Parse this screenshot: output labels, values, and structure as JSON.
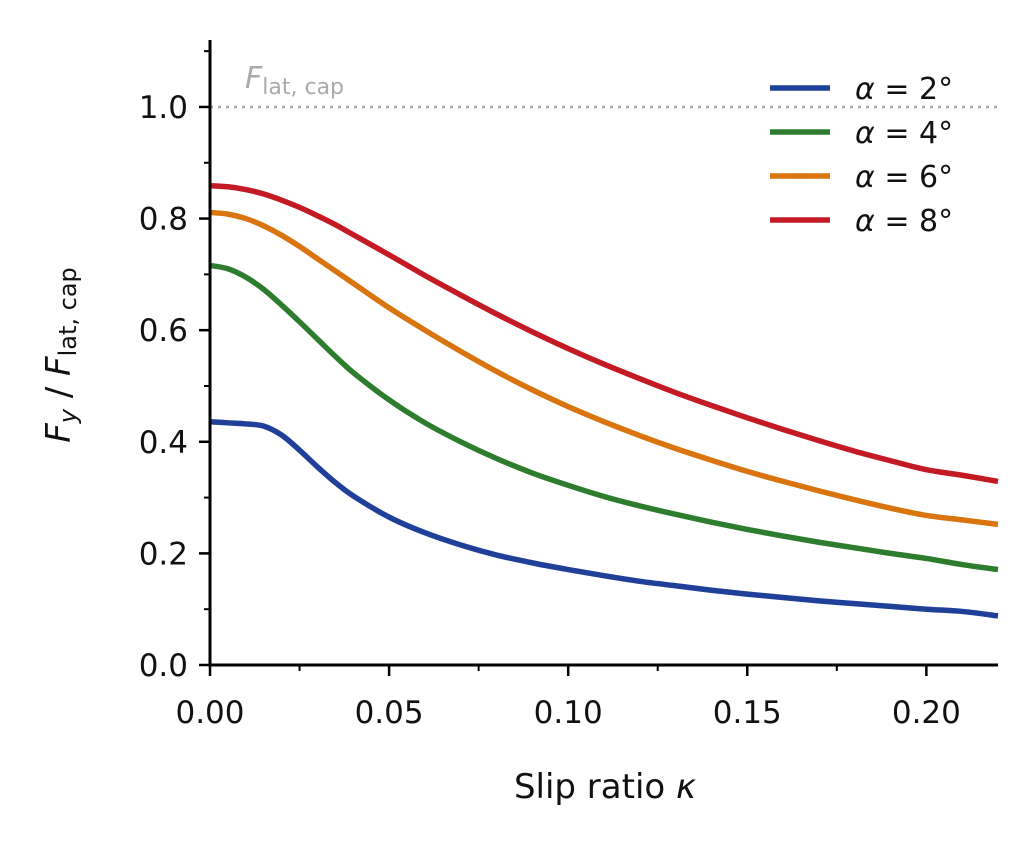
{
  "chart_data": {
    "type": "line",
    "xlabel": {
      "text": "Slip ratio",
      "symbol": "κ"
    },
    "ylabel": {
      "num": "F",
      "num_sub": "y",
      "den": "F",
      "den_sub": "lat, cap"
    },
    "xlim": [
      0,
      0.22
    ],
    "ylim": [
      0,
      1.12
    ],
    "x_ticks_major": [
      0,
      0.05,
      0.1,
      0.15,
      0.2
    ],
    "x_tick_labels": [
      "0.00",
      "0.05",
      "0.10",
      "0.15",
      "0.20"
    ],
    "x_ticks_minor": [
      0.025,
      0.075,
      0.125,
      0.175
    ],
    "y_ticks_major": [
      0,
      0.2,
      0.4,
      0.6,
      0.8,
      1.0
    ],
    "y_tick_labels": [
      "0.0",
      "0.2",
      "0.4",
      "0.6",
      "0.8",
      "1.0"
    ],
    "y_ticks_minor": [
      0.1,
      0.3,
      0.5,
      0.7,
      0.9,
      1.1
    ],
    "grid": false,
    "legend_position": "top-right",
    "reference_line": {
      "y": 1.0,
      "style": "dotted",
      "color": "#aaaaaa",
      "label_main": "F",
      "label_sub": "lat, cap"
    },
    "series": [
      {
        "name": "α = 2°",
        "label_symbol": "α",
        "label_value": "= 2°",
        "color": "#1f3f99",
        "x": [
          0,
          0.005,
          0.01,
          0.015,
          0.02,
          0.025,
          0.03,
          0.035,
          0.04,
          0.05,
          0.06,
          0.07,
          0.08,
          0.09,
          0.1,
          0.11,
          0.12,
          0.13,
          0.14,
          0.15,
          0.16,
          0.17,
          0.18,
          0.19,
          0.2,
          0.21,
          0.22
        ],
        "y": [
          0.436,
          0.434,
          0.432,
          0.428,
          0.412,
          0.385,
          0.355,
          0.327,
          0.303,
          0.265,
          0.237,
          0.215,
          0.197,
          0.183,
          0.171,
          0.16,
          0.15,
          0.142,
          0.134,
          0.127,
          0.121,
          0.115,
          0.11,
          0.105,
          0.1,
          0.096,
          0.088
        ]
      },
      {
        "name": "α = 4°",
        "label_symbol": "α",
        "label_value": "= 4°",
        "color": "#2e7d2e",
        "x": [
          0,
          0.005,
          0.01,
          0.015,
          0.02,
          0.025,
          0.03,
          0.035,
          0.04,
          0.05,
          0.06,
          0.07,
          0.08,
          0.09,
          0.1,
          0.11,
          0.12,
          0.13,
          0.14,
          0.15,
          0.16,
          0.17,
          0.18,
          0.19,
          0.2,
          0.21,
          0.22
        ],
        "y": [
          0.716,
          0.71,
          0.695,
          0.673,
          0.645,
          0.615,
          0.584,
          0.553,
          0.524,
          0.475,
          0.434,
          0.4,
          0.37,
          0.344,
          0.322,
          0.302,
          0.285,
          0.27,
          0.256,
          0.243,
          0.231,
          0.22,
          0.21,
          0.2,
          0.191,
          0.18,
          0.171
        ]
      },
      {
        "name": "α = 6°",
        "label_symbol": "α",
        "label_value": "= 6°",
        "color": "#d9740e",
        "x": [
          0,
          0.005,
          0.01,
          0.015,
          0.02,
          0.025,
          0.03,
          0.035,
          0.04,
          0.05,
          0.06,
          0.07,
          0.08,
          0.09,
          0.1,
          0.11,
          0.12,
          0.13,
          0.14,
          0.15,
          0.16,
          0.17,
          0.18,
          0.19,
          0.2,
          0.21,
          0.22
        ],
        "y": [
          0.811,
          0.808,
          0.8,
          0.787,
          0.77,
          0.75,
          0.728,
          0.706,
          0.684,
          0.64,
          0.6,
          0.562,
          0.526,
          0.493,
          0.463,
          0.436,
          0.411,
          0.388,
          0.367,
          0.347,
          0.329,
          0.312,
          0.296,
          0.281,
          0.268,
          0.26,
          0.252
        ]
      },
      {
        "name": "α = 8°",
        "label_symbol": "α",
        "label_value": "= 8°",
        "color": "#c41a24",
        "x": [
          0,
          0.005,
          0.01,
          0.015,
          0.02,
          0.025,
          0.03,
          0.035,
          0.04,
          0.05,
          0.06,
          0.07,
          0.08,
          0.09,
          0.1,
          0.11,
          0.12,
          0.13,
          0.14,
          0.15,
          0.16,
          0.17,
          0.18,
          0.19,
          0.2,
          0.21,
          0.22
        ],
        "y": [
          0.859,
          0.857,
          0.852,
          0.844,
          0.833,
          0.82,
          0.805,
          0.789,
          0.771,
          0.735,
          0.698,
          0.663,
          0.629,
          0.597,
          0.567,
          0.539,
          0.513,
          0.488,
          0.465,
          0.443,
          0.422,
          0.402,
          0.383,
          0.366,
          0.35,
          0.34,
          0.329
        ]
      }
    ]
  }
}
